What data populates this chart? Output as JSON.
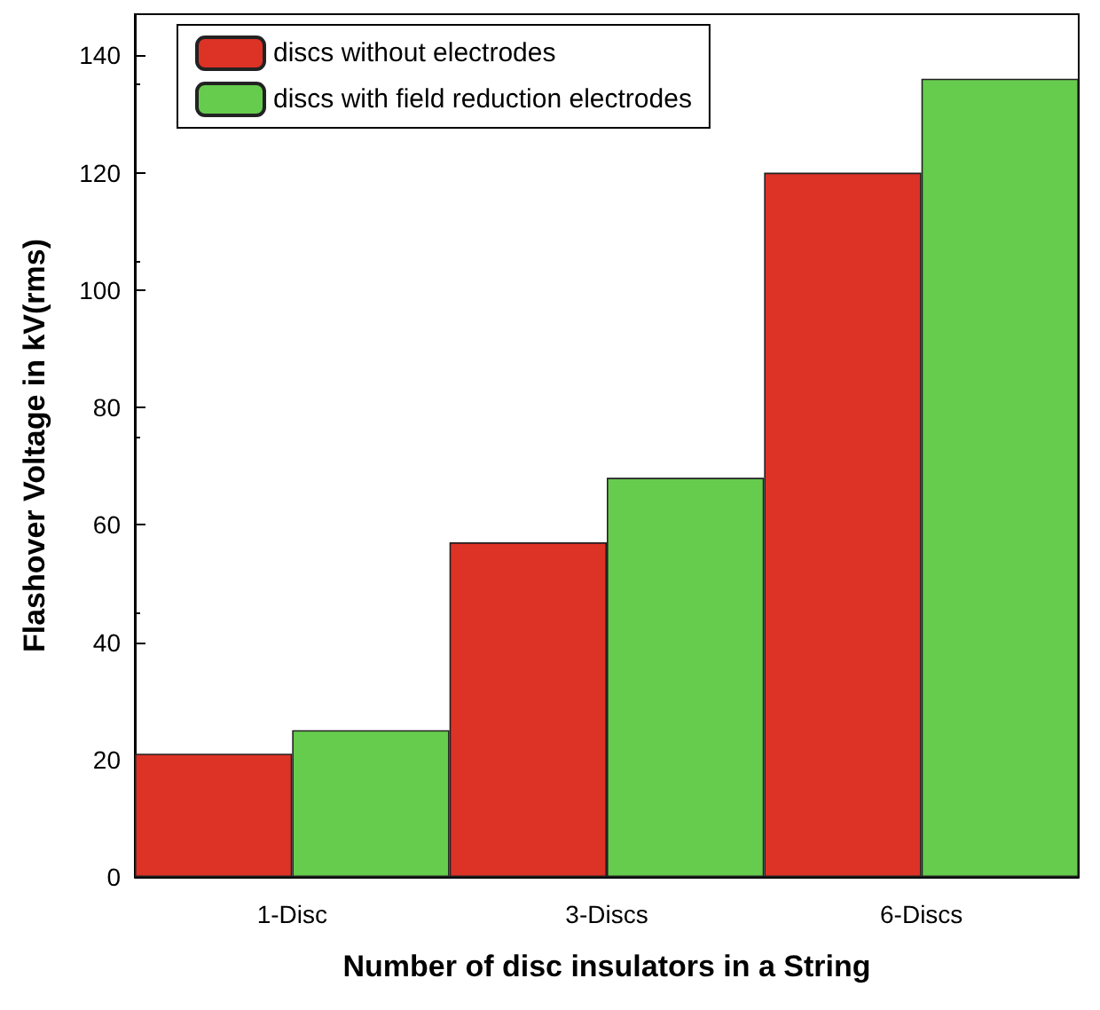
{
  "chart_data": {
    "type": "bar",
    "xlabel": "Number of disc insulators in a String",
    "ylabel": "Flashover Voltage in kV(rms)",
    "categories": [
      "1-Disc",
      "3-Discs",
      "6-Discs"
    ],
    "series": [
      {
        "name": "discs without electrodes",
        "color": "#dd3226",
        "values": [
          21,
          57,
          120
        ]
      },
      {
        "name": "discs with field reduction electrodes",
        "color": "#66cc4d",
        "values": [
          25,
          68,
          136
        ]
      }
    ],
    "ylim": [
      0,
      147
    ],
    "yticks": [
      0,
      20,
      40,
      60,
      80,
      100,
      120,
      140
    ],
    "grid": false,
    "legend": "top left"
  }
}
